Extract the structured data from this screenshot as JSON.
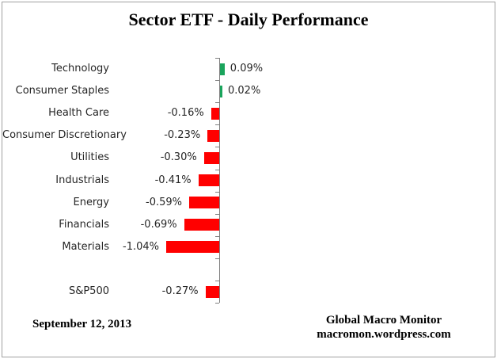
{
  "window": {
    "background": "#FFFFFF",
    "border_color": "#A0A0A0"
  },
  "chart_data": {
    "type": "bar",
    "orientation": "horizontal",
    "title": "Sector ETF - Daily Performance",
    "unit": "%",
    "categories": [
      "Technology",
      "Consumer Staples",
      "Health Care",
      "Consumer Discretionary",
      "Utilities",
      "Industrials",
      "Energy",
      "Financials",
      "Materials",
      "",
      "S&P500"
    ],
    "values": [
      0.09,
      0.02,
      -0.16,
      -0.23,
      -0.3,
      -0.41,
      -0.59,
      -0.69,
      -1.04,
      null,
      -0.27
    ],
    "value_labels": [
      "0.09%",
      "0.02%",
      "-0.16%",
      "-0.23%",
      "-0.30%",
      "-0.41%",
      "-0.59%",
      "-0.69%",
      "-1.04%",
      "",
      "-0.27%"
    ],
    "positive_color": "#1AA45C",
    "negative_color": "#FF0000",
    "axis_color": "#808080",
    "gridlines": false,
    "legend": false,
    "value_labels_shown": true
  },
  "footer": {
    "date": "September 12, 2013",
    "attribution_line1": "Global Macro Monitor",
    "attribution_line2": "macromon.wordpress.com"
  }
}
